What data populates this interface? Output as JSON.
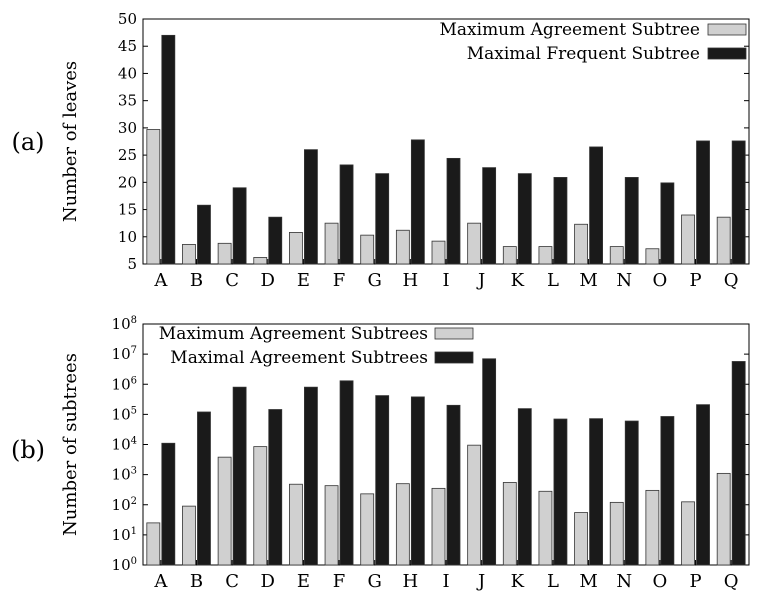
{
  "chart_data": [
    {
      "type": "bar",
      "panel_label": "(a)",
      "ylabel": "Number of leaves",
      "xlabel": "",
      "ylim": [
        5,
        50
      ],
      "yscale": "linear",
      "yticks": [
        "5",
        "10",
        "15",
        "20",
        "25",
        "30",
        "35",
        "40",
        "45",
        "50"
      ],
      "ytick_values": [
        5,
        10,
        15,
        20,
        25,
        30,
        35,
        40,
        45,
        50
      ],
      "categories": [
        "A",
        "B",
        "C",
        "D",
        "E",
        "F",
        "G",
        "H",
        "I",
        "J",
        "K",
        "L",
        "M",
        "N",
        "O",
        "P",
        "Q"
      ],
      "legend_position": "top-right",
      "grid": false,
      "series": [
        {
          "name": "Maximum Agreement Subtree",
          "color": "#d0d0d0",
          "values": [
            29.7,
            8.6,
            8.8,
            6.2,
            10.8,
            12.5,
            10.3,
            11.2,
            9.2,
            12.5,
            8.2,
            8.2,
            12.3,
            8.2,
            7.8,
            14.0,
            13.6
          ]
        },
        {
          "name": "Maximal Frequent Subtree",
          "color": "#1a1a1a",
          "values": [
            47.0,
            15.8,
            19.0,
            13.6,
            26.0,
            23.2,
            21.6,
            27.8,
            24.4,
            22.7,
            21.6,
            20.9,
            26.5,
            20.9,
            19.9,
            27.6,
            27.6
          ]
        }
      ]
    },
    {
      "type": "bar",
      "panel_label": "(b)",
      "ylabel": "Number of subtrees",
      "xlabel": "",
      "ylim": [
        1,
        100000000
      ],
      "yscale": "log",
      "yticks": [
        "10^0",
        "10^1",
        "10^2",
        "10^3",
        "10^4",
        "10^5",
        "10^6",
        "10^7",
        "10^8"
      ],
      "ytick_values": [
        1,
        10,
        100,
        1000,
        10000,
        100000,
        1000000,
        10000000,
        100000000
      ],
      "categories": [
        "A",
        "B",
        "C",
        "D",
        "E",
        "F",
        "G",
        "H",
        "I",
        "J",
        "K",
        "L",
        "M",
        "N",
        "O",
        "P",
        "Q"
      ],
      "legend_position": "top-left",
      "grid": false,
      "series": [
        {
          "name": "Maximum Agreement Subtrees",
          "color": "#d0d0d0",
          "values": [
            25,
            90,
            3800,
            8500,
            480,
            430,
            230,
            500,
            350,
            9500,
            550,
            280,
            55,
            120,
            300,
            125,
            1100
          ]
        },
        {
          "name": "Maximal Agreement Subtrees",
          "color": "#1a1a1a",
          "values": [
            11000,
            120000,
            800000,
            145000,
            800000,
            1300000,
            420000,
            380000,
            200000,
            7000000,
            155000,
            70000,
            72000,
            60000,
            85000,
            210000,
            5700000
          ]
        }
      ]
    }
  ]
}
